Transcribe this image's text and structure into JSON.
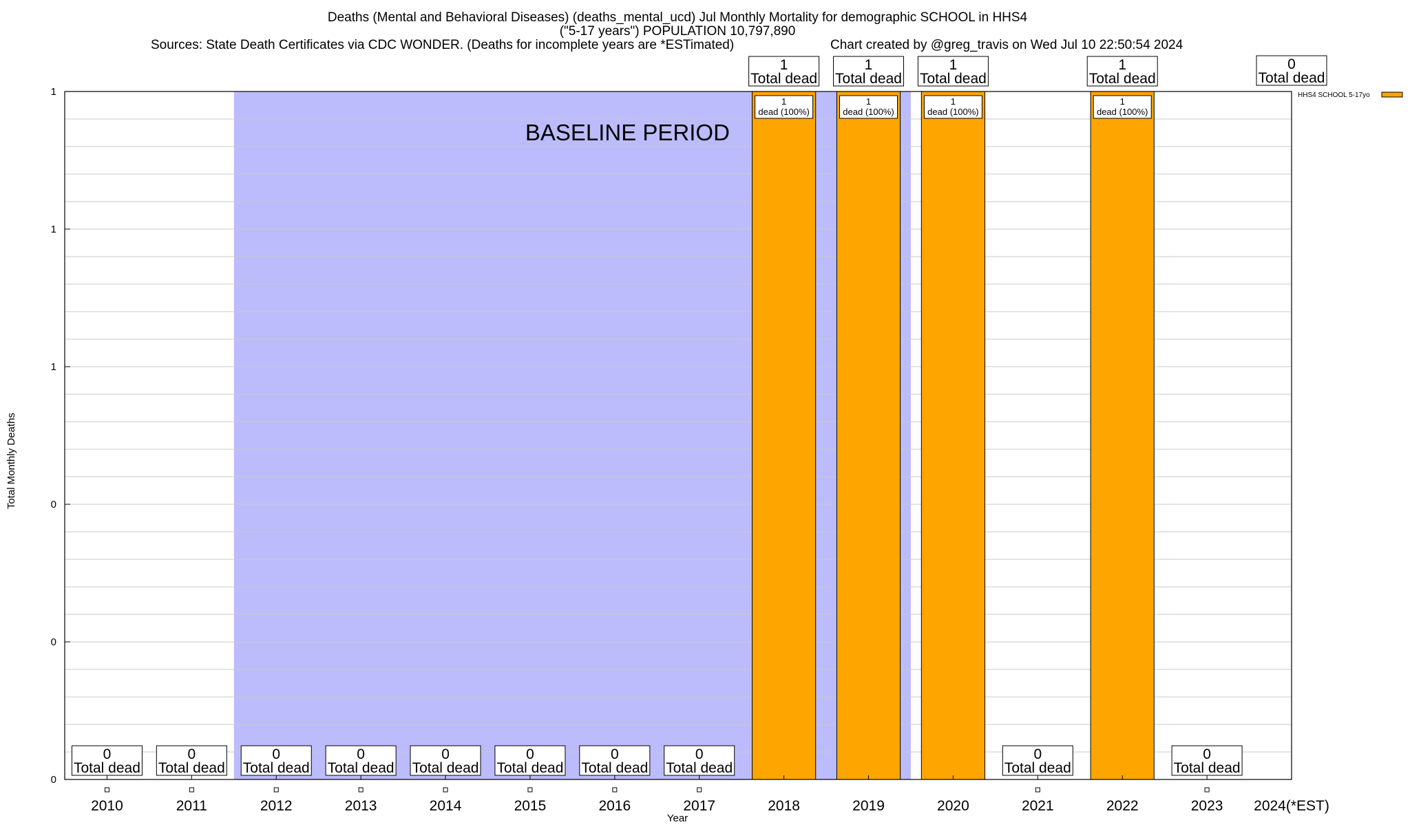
{
  "chart_data": {
    "type": "bar",
    "title_lines": [
      "Deaths (Mental and Behavioral Diseases) (deaths_mental_ucd) Jul Monthly Mortality for demographic SCHOOL in HHS4",
      "(\"5-17 years\") POPULATION 10,797,890"
    ],
    "sources": "Sources: State Death Certificates via CDC WONDER. (Deaths for incomplete years are *ESTimated)",
    "credit": "Chart created by @greg_travis on Wed Jul 10 22:50:54 2024",
    "xlabel": "Year",
    "ylabel": "Total Monthly Deaths",
    "ylim": [
      0,
      1
    ],
    "y_tick_values": [
      0,
      0.2,
      0.4,
      0.6,
      0.8,
      1
    ],
    "y_tick_labels": [
      "0",
      "0",
      "0",
      "1",
      "1",
      "1"
    ],
    "grid": true,
    "legend_position": "top-right",
    "series": [
      {
        "name": "HHS4 SCHOOL 5-17yo",
        "color": "#ffa500",
        "values": [
          0,
          0,
          0,
          0,
          0,
          0,
          0,
          0,
          1,
          1,
          1,
          0,
          1,
          0,
          0
        ]
      }
    ],
    "categories": [
      "2010",
      "2011",
      "2012",
      "2013",
      "2014",
      "2015",
      "2016",
      "2017",
      "2018",
      "2019",
      "2020",
      "2021",
      "2022",
      "2023",
      "2024(*EST)"
    ],
    "total_labels": [
      "0",
      "0",
      "0",
      "0",
      "0",
      "0",
      "0",
      "0",
      "1",
      "1",
      "1",
      "0",
      "1",
      "0",
      "0"
    ],
    "total_suffix": "Total dead",
    "bar_inner_labels": [
      "",
      "",
      "",
      "",
      "",
      "",
      "",
      "",
      "1|dead (100%)",
      "1|dead (100%)",
      "1|dead (100%)",
      "",
      "1|dead (100%)",
      "",
      ""
    ],
    "baseline_period": {
      "label": "BASELINE PERIOD",
      "start": "2012",
      "end": "2019",
      "color": "#bcbcfc"
    }
  }
}
